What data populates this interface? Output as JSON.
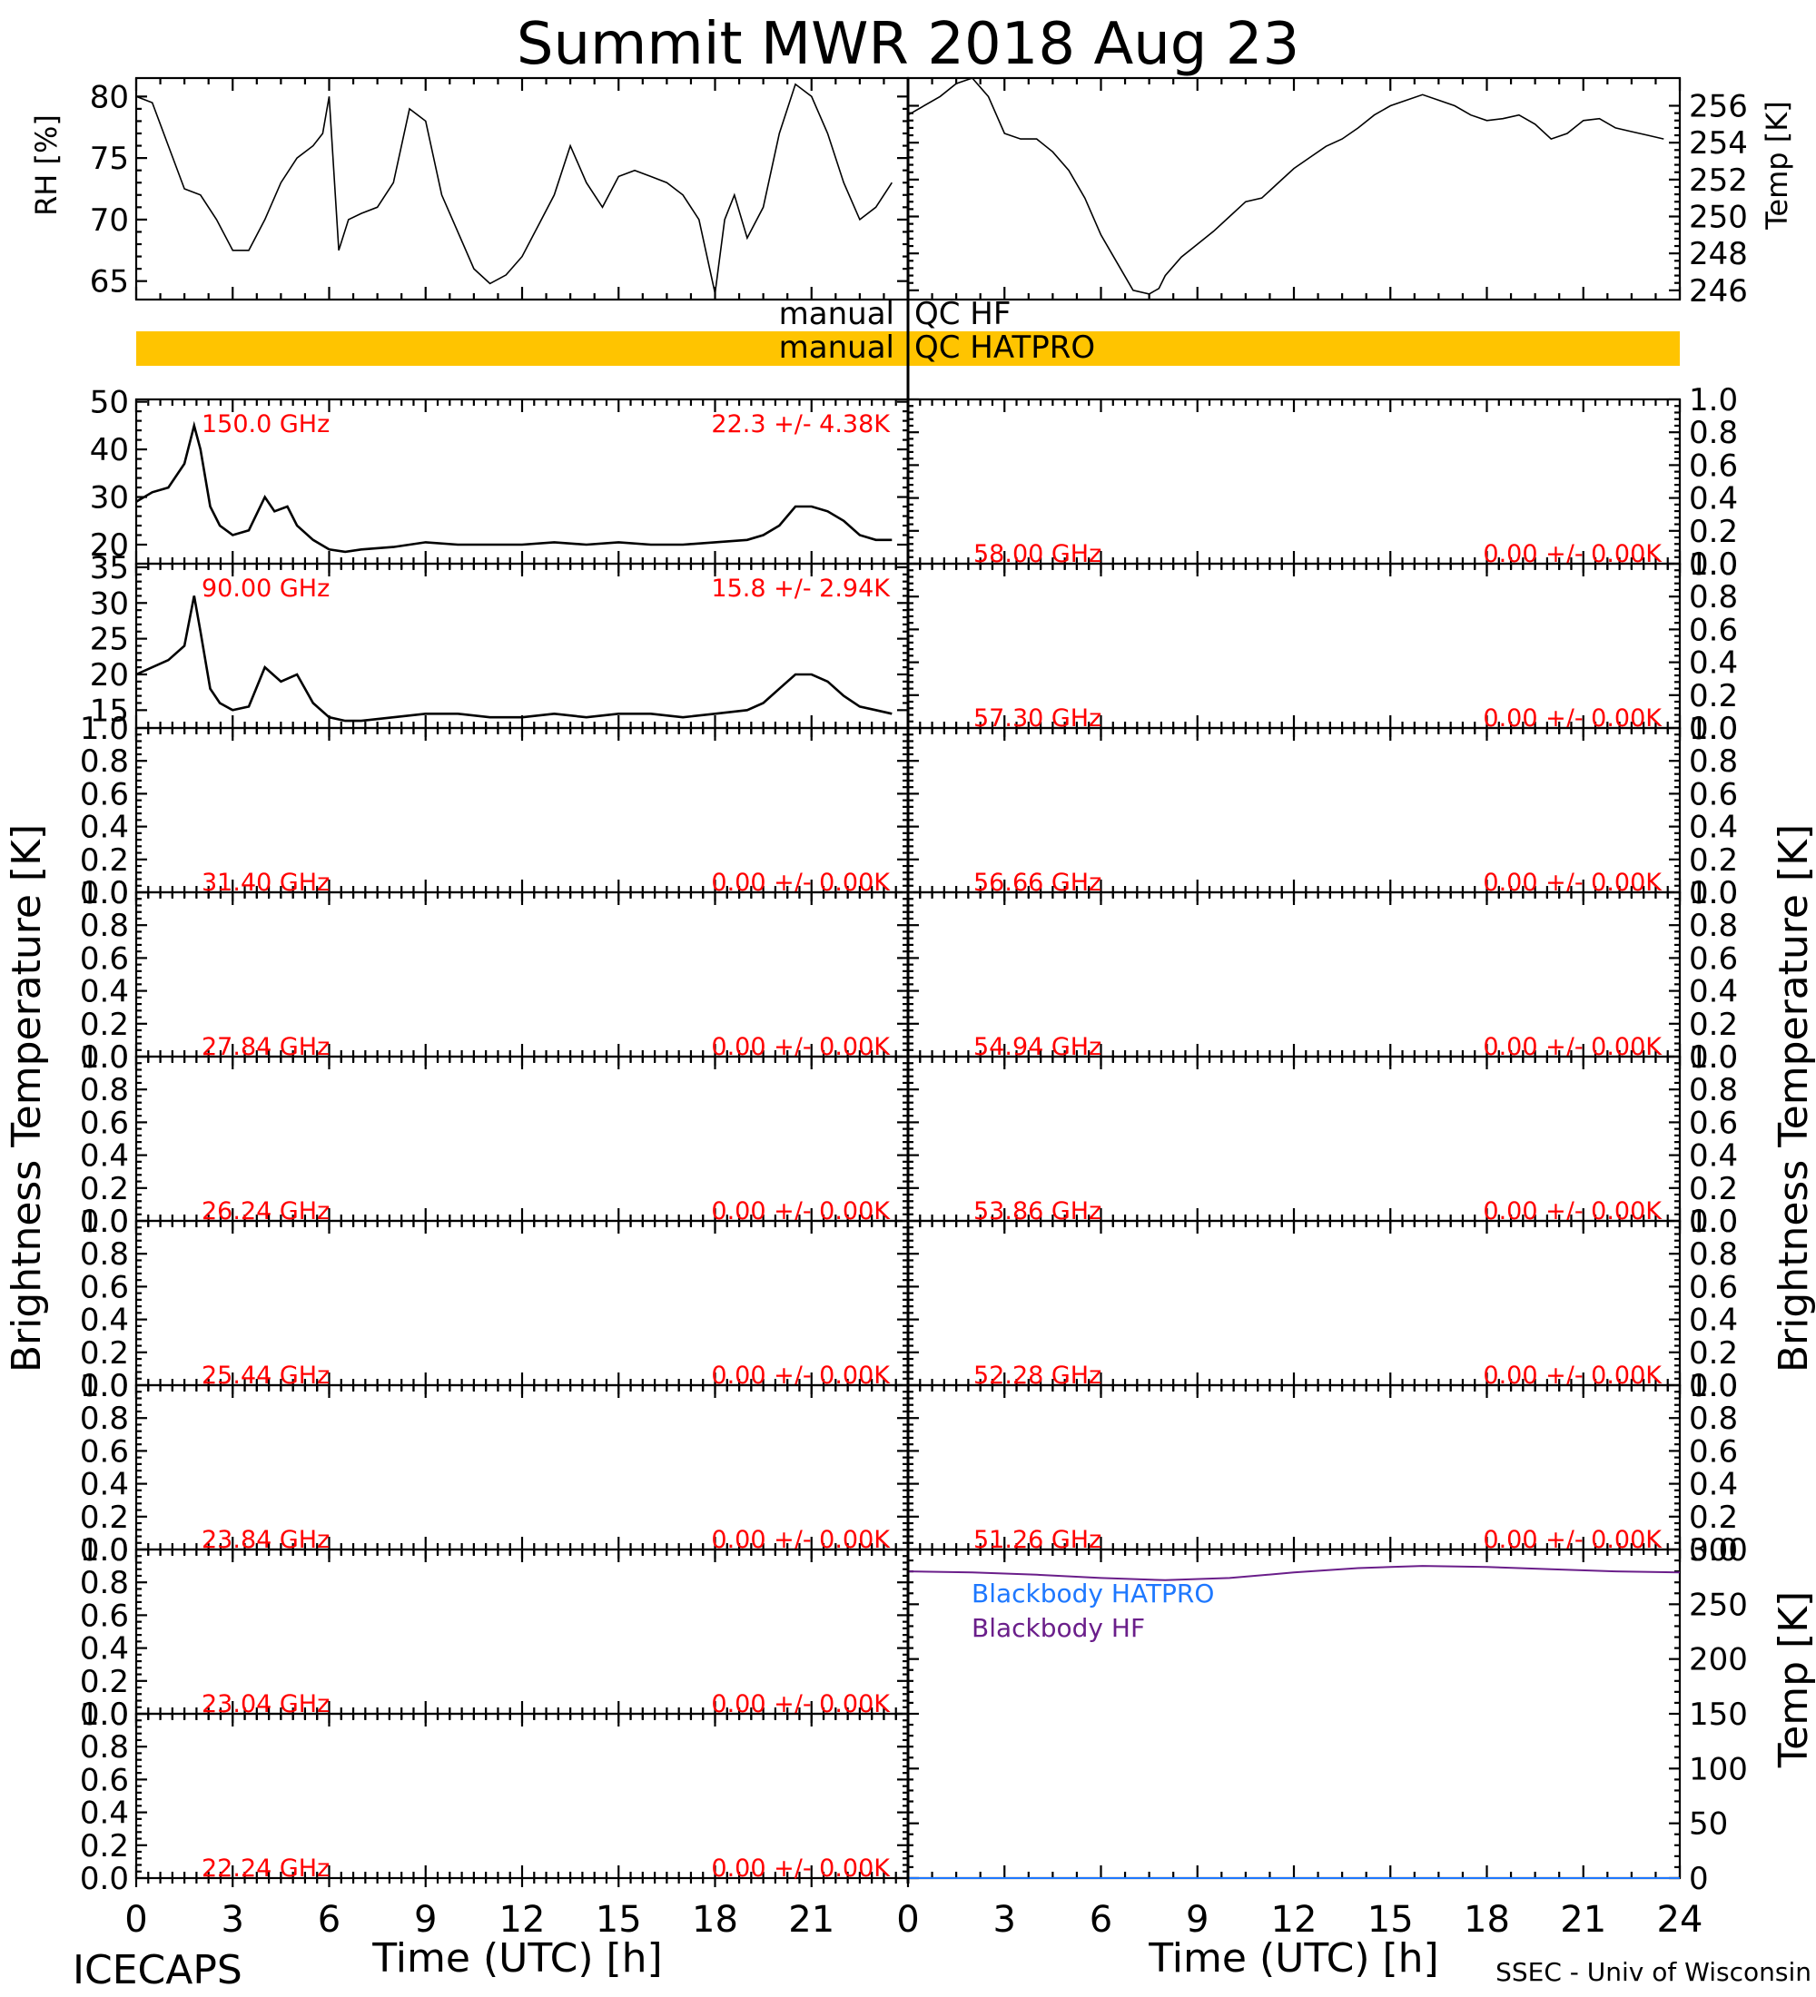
{
  "title": "Summit MWR 2018 Aug 23",
  "footer": {
    "left": "ICECAPS",
    "right": "SSEC - Univ of Wisconsin"
  },
  "labels": {
    "rh": "RH [%]",
    "temp": "Temp [K]",
    "tb_left": "Brightness Temperature [K]",
    "tb_right": "Brightness Temperature [K]",
    "bb_temp": "Temp [K]",
    "time_left": "Time (UTC) [h]",
    "time_right": "Time (UTC) [h]"
  },
  "qc": {
    "hf": {
      "left": "manual",
      "right": "QC HF"
    },
    "hatpro": {
      "left": "manual",
      "right": "QC HATPRO",
      "color": "#ffc400"
    }
  },
  "colors": {
    "label_red": "#ff0000",
    "hatpro_blue": "#1e78ff",
    "hf_purple": "#6a1e8a",
    "qc_bar": "#ffc400"
  },
  "chart_data": [
    {
      "id": "rh",
      "type": "line",
      "xlim": [
        0,
        24
      ],
      "ylim": [
        63.5,
        81.5
      ],
      "yticks": [
        65,
        70,
        75,
        80
      ],
      "ylabel": "RH [%]",
      "x": [
        0,
        0.5,
        1,
        1.5,
        2,
        2.5,
        3,
        3.5,
        4,
        4.5,
        5,
        5.5,
        5.8,
        6,
        6.3,
        6.6,
        7,
        7.5,
        8,
        8.5,
        9,
        9.5,
        10,
        10.5,
        11,
        11.5,
        12,
        12.5,
        13,
        13.5,
        14,
        14.5,
        15,
        15.5,
        16,
        16.5,
        17,
        17.5,
        18,
        18.3,
        18.6,
        19,
        19.5,
        20,
        20.5,
        21,
        21.5,
        22,
        22.5,
        23,
        23.5
      ],
      "y": [
        80,
        79.5,
        76,
        72.5,
        72,
        70,
        67.5,
        67.5,
        70,
        73,
        75,
        76,
        77,
        80,
        67.5,
        70,
        70.5,
        71,
        73,
        79,
        78,
        72,
        69,
        66,
        64.8,
        65.5,
        67,
        69.5,
        72,
        76,
        73,
        71,
        73.5,
        74,
        73.5,
        73,
        72,
        70,
        64,
        70,
        72,
        68.5,
        71,
        77,
        81,
        80,
        77,
        73,
        70,
        71,
        73
      ]
    },
    {
      "id": "temp",
      "type": "line",
      "xlim": [
        0,
        24
      ],
      "ylim": [
        245.5,
        257.5
      ],
      "yticks": [
        246,
        248,
        250,
        252,
        254,
        256
      ],
      "ylabel": "Temp [K]",
      "x": [
        0,
        1,
        1.5,
        2,
        2.5,
        3,
        3.5,
        4,
        4.5,
        5,
        5.5,
        6,
        6.5,
        7,
        7.5,
        7.8,
        8,
        8.5,
        9,
        9.5,
        10,
        10.5,
        11,
        11.5,
        12,
        12.5,
        13,
        13.5,
        14,
        14.5,
        15,
        15.5,
        16,
        16.5,
        17,
        17.5,
        18,
        18.5,
        19,
        19.5,
        20,
        20.5,
        21,
        21.5,
        22,
        22.5,
        23,
        23.5
      ],
      "y": [
        255.5,
        256.5,
        257.2,
        257.5,
        256.5,
        254.5,
        254.2,
        254.2,
        253.5,
        252.5,
        251,
        249,
        247.5,
        246,
        245.8,
        246.1,
        246.8,
        247.8,
        248.5,
        249.2,
        250,
        250.8,
        251,
        251.8,
        252.6,
        253.2,
        253.8,
        254.2,
        254.8,
        255.5,
        256,
        256.3,
        256.6,
        256.3,
        256,
        255.5,
        255.2,
        255.3,
        255.5,
        255,
        254.2,
        254.5,
        255.2,
        255.3,
        254.8,
        254.6,
        254.4,
        254.2
      ]
    },
    {
      "id": "tb150",
      "type": "line",
      "xlim": [
        0,
        24
      ],
      "ylim": [
        16,
        50.5
      ],
      "yticks": [
        20,
        30,
        40,
        50
      ],
      "freq_label": "150.0 GHz",
      "stat_label": "22.3 +/-  4.38K",
      "x": [
        0,
        0.5,
        1,
        1.5,
        1.8,
        2,
        2.3,
        2.6,
        3,
        3.5,
        4,
        4.3,
        4.7,
        5,
        5.5,
        6,
        6.5,
        7,
        8,
        9,
        10,
        11,
        12,
        13,
        14,
        15,
        16,
        17,
        18,
        19,
        19.5,
        20,
        20.5,
        21,
        21.5,
        22,
        22.5,
        23,
        23.5
      ],
      "y": [
        29,
        31,
        32,
        37,
        45,
        40,
        28,
        24,
        22,
        23,
        30,
        27,
        28,
        24,
        21,
        19,
        18.5,
        19,
        19.5,
        20.5,
        20,
        20,
        20,
        20.5,
        20,
        20.5,
        20,
        20,
        20.5,
        21,
        22,
        24,
        28,
        28,
        27,
        25,
        22,
        21,
        21
      ]
    },
    {
      "id": "tb90",
      "type": "line",
      "xlim": [
        0,
        24
      ],
      "ylim": [
        12.5,
        35.5
      ],
      "yticks": [
        15,
        20,
        25,
        30,
        35
      ],
      "freq_label": "90.00 GHz",
      "stat_label": "15.8 +/-  2.94K",
      "x": [
        0,
        0.5,
        1,
        1.5,
        1.8,
        2,
        2.3,
        2.6,
        3,
        3.5,
        4,
        4.5,
        5,
        5.5,
        6,
        6.5,
        7,
        8,
        9,
        10,
        11,
        12,
        13,
        14,
        15,
        16,
        17,
        18,
        19,
        19.5,
        20,
        20.5,
        21,
        21.5,
        22,
        22.5,
        23,
        23.5
      ],
      "y": [
        20,
        21,
        22,
        24,
        31,
        26,
        18,
        16,
        15,
        15.5,
        21,
        19,
        20,
        16,
        14,
        13.5,
        13.5,
        14,
        14.5,
        14.5,
        14,
        14,
        14.5,
        14,
        14.5,
        14.5,
        14,
        14.5,
        15,
        16,
        18,
        20,
        20,
        19,
        17,
        15.5,
        15,
        14.5
      ]
    },
    {
      "id": "t31",
      "type": "line",
      "freq_label": "31.40 GHz",
      "stat_label": "0.00 +/-  0.00K",
      "ylim": [
        0,
        1
      ],
      "yticks": [
        0.0,
        0.2,
        0.4,
        0.6,
        0.8,
        1.0
      ],
      "x": [],
      "y": []
    },
    {
      "id": "t27",
      "type": "line",
      "freq_label": "27.84 GHz",
      "stat_label": "0.00 +/-  0.00K",
      "ylim": [
        0,
        1
      ],
      "yticks": [
        0.0,
        0.2,
        0.4,
        0.6,
        0.8,
        1.0
      ],
      "x": [],
      "y": []
    },
    {
      "id": "t26",
      "type": "line",
      "freq_label": "26.24 GHz",
      "stat_label": "0.00 +/-  0.00K",
      "ylim": [
        0,
        1
      ],
      "yticks": [
        0.0,
        0.2,
        0.4,
        0.6,
        0.8,
        1.0
      ],
      "x": [],
      "y": []
    },
    {
      "id": "t25",
      "type": "line",
      "freq_label": "25.44 GHz",
      "stat_label": "0.00 +/-  0.00K",
      "ylim": [
        0,
        1
      ],
      "yticks": [
        0.0,
        0.2,
        0.4,
        0.6,
        0.8,
        1.0
      ],
      "x": [],
      "y": []
    },
    {
      "id": "t23a",
      "type": "line",
      "freq_label": "23.84 GHz",
      "stat_label": "0.00 +/-  0.00K",
      "ylim": [
        0,
        1
      ],
      "yticks": [
        0.0,
        0.2,
        0.4,
        0.6,
        0.8,
        1.0
      ],
      "x": [],
      "y": []
    },
    {
      "id": "t23b",
      "type": "line",
      "freq_label": "23.04 GHz",
      "stat_label": "0.00 +/-  0.00K",
      "ylim": [
        0,
        1
      ],
      "yticks": [
        0.0,
        0.2,
        0.4,
        0.6,
        0.8,
        1.0
      ],
      "x": [],
      "y": []
    },
    {
      "id": "t22",
      "type": "line",
      "freq_label": "22.24 GHz",
      "stat_label": "0.00 +/-  0.00K",
      "ylim": [
        0,
        1
      ],
      "yticks": [
        0.0,
        0.2,
        0.4,
        0.6,
        0.8,
        1.0
      ],
      "x": [],
      "y": []
    },
    {
      "id": "t58",
      "type": "line",
      "freq_label": "58.00 GHz",
      "stat_label": "0.00 +/-  0.00K",
      "ylim": [
        0,
        1
      ],
      "yticks": [
        0.0,
        0.2,
        0.4,
        0.6,
        0.8,
        1.0
      ],
      "x": [],
      "y": []
    },
    {
      "id": "t57",
      "type": "line",
      "freq_label": "57.30 GHz",
      "stat_label": "0.00 +/-  0.00K",
      "ylim": [
        0,
        1
      ],
      "yticks": [
        0.0,
        0.2,
        0.4,
        0.6,
        0.8,
        1.0
      ],
      "x": [],
      "y": []
    },
    {
      "id": "t56",
      "type": "line",
      "freq_label": "56.66 GHz",
      "stat_label": "0.00 +/-  0.00K",
      "ylim": [
        0,
        1
      ],
      "yticks": [
        0.0,
        0.2,
        0.4,
        0.6,
        0.8,
        1.0
      ],
      "x": [],
      "y": []
    },
    {
      "id": "t54",
      "type": "line",
      "freq_label": "54.94 GHz",
      "stat_label": "0.00 +/-  0.00K",
      "ylim": [
        0,
        1
      ],
      "yticks": [
        0.0,
        0.2,
        0.4,
        0.6,
        0.8,
        1.0
      ],
      "x": [],
      "y": []
    },
    {
      "id": "t53",
      "type": "line",
      "freq_label": "53.86 GHz",
      "stat_label": "0.00 +/-  0.00K",
      "ylim": [
        0,
        1
      ],
      "yticks": [
        0.0,
        0.2,
        0.4,
        0.6,
        0.8,
        1.0
      ],
      "x": [],
      "y": []
    },
    {
      "id": "t52",
      "type": "line",
      "freq_label": "52.28 GHz",
      "stat_label": "0.00 +/-  0.00K",
      "ylim": [
        0,
        1
      ],
      "yticks": [
        0.0,
        0.2,
        0.4,
        0.6,
        0.8,
        1.0
      ],
      "x": [],
      "y": []
    },
    {
      "id": "t51",
      "type": "line",
      "freq_label": "51.26 GHz",
      "stat_label": "0.00 +/-  0.00K",
      "ylim": [
        0,
        1
      ],
      "yticks": [
        0.0,
        0.2,
        0.4,
        0.6,
        0.8,
        1.0
      ],
      "x": [],
      "y": []
    },
    {
      "id": "blackbody",
      "type": "line",
      "xlim": [
        0,
        24
      ],
      "ylim": [
        0,
        300
      ],
      "yticks": [
        0,
        50,
        100,
        150,
        200,
        250,
        300
      ],
      "ylabel": "Temp [K]",
      "series": [
        {
          "name": "Blackbody HATPRO",
          "color": "#1e78ff",
          "x": [
            0,
            24
          ],
          "y": [
            0,
            0
          ]
        },
        {
          "name": "Blackbody HF",
          "color": "#6a1e8a",
          "x": [
            0,
            2,
            4,
            6,
            8,
            10,
            12,
            14,
            16,
            18,
            20,
            22,
            24
          ],
          "y": [
            280,
            279,
            277,
            274,
            272,
            274,
            279,
            283,
            285,
            284,
            282,
            280,
            279
          ]
        }
      ]
    }
  ],
  "x_axis": {
    "xlim": [
      0,
      24
    ],
    "xticks": [
      0,
      3,
      6,
      9,
      12,
      15,
      18,
      21,
      24
    ],
    "left_ticklabels": [
      0,
      3,
      6,
      9,
      12,
      15,
      18,
      21
    ]
  }
}
